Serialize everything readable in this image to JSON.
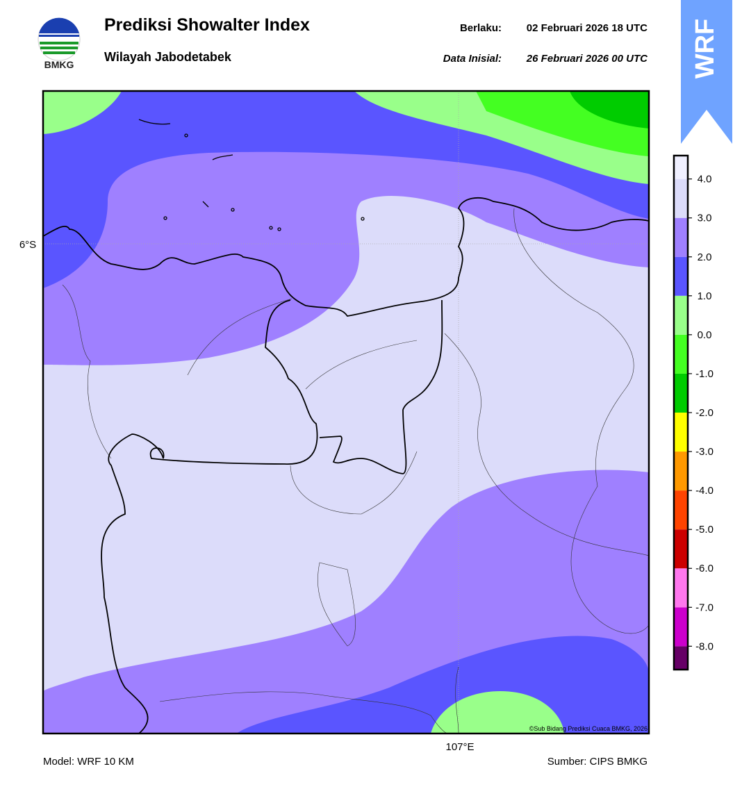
{
  "header": {
    "title": "Prediksi Showalter Index",
    "subtitle": "Wilayah Jabodetabek",
    "valid_label": "Berlaku:",
    "valid_value": "02 Februari 2026 18 UTC",
    "init_label": "Data Inisial:",
    "init_value": "26 Februari 2026 00 UTC",
    "logo_text": "BMKG",
    "badge": "WRF"
  },
  "map": {
    "lat_label": "6°S",
    "lon_label": "107°E",
    "copyright": "©Sub Bidang Prediksi Cuaca BMKG, 2026"
  },
  "colorbar": {
    "lim": [
      -8.6,
      4.6
    ],
    "ticks": [
      {
        "value": -8,
        "label": "-8.0"
      },
      {
        "value": -7,
        "label": "-7.0"
      },
      {
        "value": -6,
        "label": "-6.0"
      },
      {
        "value": -5,
        "label": "-5.0"
      },
      {
        "value": -4,
        "label": "-4.0"
      },
      {
        "value": -3,
        "label": "-3.0"
      },
      {
        "value": -2,
        "label": "-2.0"
      },
      {
        "value": -1,
        "label": "-1.0"
      },
      {
        "value": 0,
        "label": "0.0"
      },
      {
        "value": 1,
        "label": "1.0"
      },
      {
        "value": 2,
        "label": "2.0"
      },
      {
        "value": 3,
        "label": "3.0"
      },
      {
        "value": 4,
        "label": "4.0"
      }
    ],
    "colors": [
      "#660066",
      "#cc00cc",
      "#ff77ee",
      "#cc0000",
      "#ff4400",
      "#ff9900",
      "#ffff00",
      "#00cc00",
      "#44ff22",
      "#99ff8a",
      "#5a55ff",
      "#9f80ff",
      "#dcdcfa",
      "#f0f0ff"
    ]
  },
  "footer": {
    "model": "Model: WRF 10 KM",
    "source": "Sumber: CIPS BMKG"
  }
}
